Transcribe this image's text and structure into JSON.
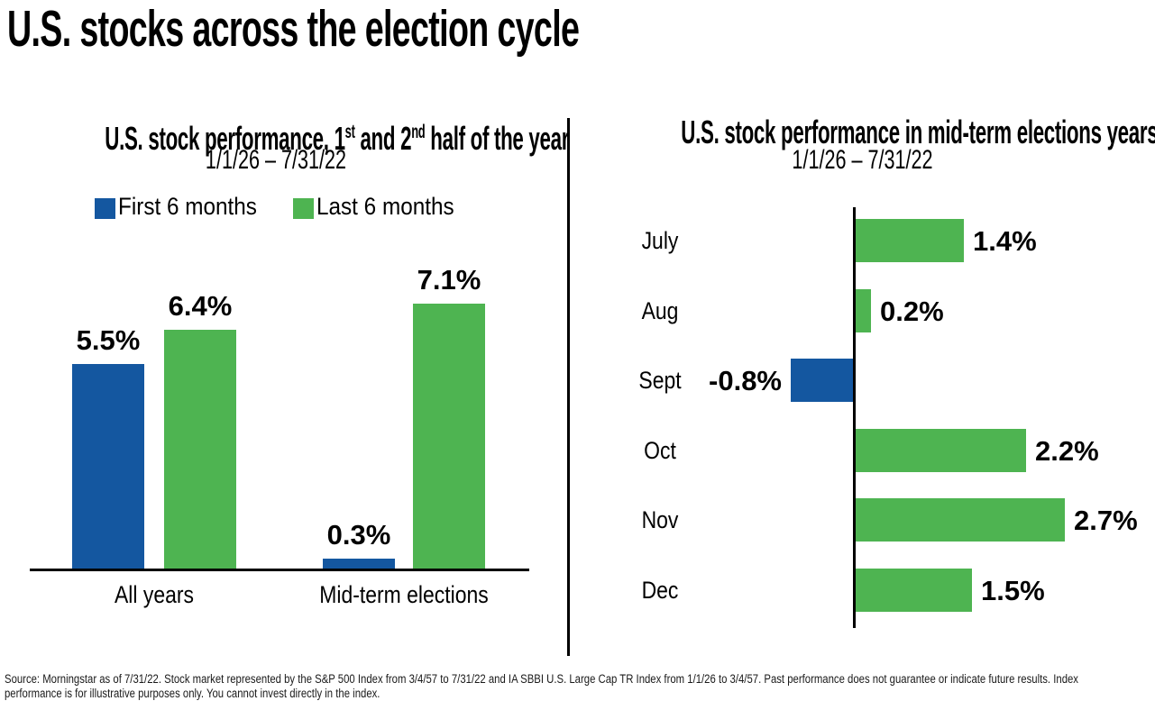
{
  "page": {
    "title": "U.S. stocks across the election cycle",
    "footer_lines": [
      "Source: Morningstar as of 7/31/22.  Stock market represented by the S&P 500 Index from 3/4/57 to 7/31/22 and  IA SBBI U.S. Large Cap TR Index from 1/1/26 to 3/4/57.  Past performance does not guarantee or indicate future results. Index",
      "performance is for illustrative purposes only. You cannot invest directly in the index."
    ]
  },
  "colors": {
    "blue": "#1457A0",
    "green": "#4EB451",
    "axis": "#000000",
    "text": "#000000"
  },
  "chart_data": [
    {
      "type": "bar",
      "orientation": "vertical",
      "title": "U.S. stock performance, 1st and 2nd half of the year",
      "title_parts": {
        "t1": "U.S. stock performance, 1",
        "sup1": "st",
        "t2": " and 2",
        "sup2": "nd",
        "t3": " half of the year"
      },
      "subtitle": "1/1/26 – 7/31/22",
      "categories": [
        "All years",
        "Mid-term elections"
      ],
      "series": [
        {
          "name": "First 6 months",
          "color": "#1457A0",
          "values": [
            5.5,
            0.3
          ],
          "value_labels": [
            "5.5%",
            "0.3%"
          ]
        },
        {
          "name": "Last 6 months",
          "color": "#4EB451",
          "values": [
            6.4,
            7.1
          ],
          "value_labels": [
            "6.4%",
            "7.1%"
          ]
        }
      ],
      "xlabel": "",
      "ylabel": "",
      "ylim": [
        0,
        7.5
      ],
      "grid": false,
      "legend_position": "top"
    },
    {
      "type": "bar",
      "orientation": "horizontal",
      "title": "U.S. stock performance in mid-term elections years",
      "subtitle": "1/1/26 – 7/31/22",
      "categories": [
        "July",
        "Aug",
        "Sept",
        "Oct",
        "Nov",
        "Dec"
      ],
      "values": [
        1.4,
        0.2,
        -0.8,
        2.2,
        2.7,
        1.5
      ],
      "value_labels": [
        "1.4%",
        "0.2%",
        "-0.8%",
        "2.2%",
        "2.7%",
        "1.5%"
      ],
      "positive_color": "#4EB451",
      "negative_color": "#1457A0",
      "xlim": [
        -0.9,
        2.8
      ],
      "grid": false,
      "legend_position": "none"
    }
  ]
}
